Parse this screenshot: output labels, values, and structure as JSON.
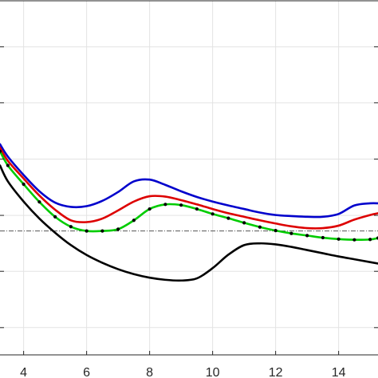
{
  "chart_data": {
    "type": "line",
    "title": "",
    "xlabel": "",
    "ylabel": "",
    "xlim": [
      3.25,
      15.25
    ],
    "ylim": [
      0,
      1
    ],
    "x_ticks": [
      4,
      6,
      8,
      10,
      12,
      14
    ],
    "x_tick_labels": [
      "4",
      "6",
      "8",
      "10",
      "12",
      "14"
    ],
    "y_ticks": [
      0.077,
      0.236,
      0.394,
      0.553,
      0.712,
      0.87
    ],
    "grid": true,
    "legend": "none",
    "reference_line": {
      "y": 0.35,
      "style": "dash-dot",
      "color": "#555555"
    },
    "series": [
      {
        "color": "#0000cc",
        "style": "solid",
        "x": [
          3.25,
          3.5,
          4,
          4.5,
          5,
          5.5,
          6,
          6.5,
          7,
          7.5,
          8,
          8.5,
          9,
          9.5,
          10,
          10.5,
          11,
          11.5,
          12,
          12.5,
          13,
          13.5,
          14,
          14.5,
          15,
          15.25
        ],
        "y": [
          0.595,
          0.56,
          0.508,
          0.462,
          0.43,
          0.418,
          0.42,
          0.435,
          0.46,
          0.49,
          0.495,
          0.48,
          0.462,
          0.446,
          0.433,
          0.422,
          0.412,
          0.402,
          0.395,
          0.392,
          0.39,
          0.39,
          0.398,
          0.422,
          0.428,
          0.428
        ]
      },
      {
        "color": "#dd0000",
        "style": "solid",
        "x": [
          3.25,
          3.5,
          4,
          4.5,
          5,
          5.5,
          6,
          6.5,
          7,
          7.5,
          8,
          8.5,
          9,
          9.5,
          10,
          10.5,
          11,
          11.5,
          12,
          12.5,
          13,
          13.5,
          14,
          14.5,
          15,
          15.25
        ],
        "y": [
          0.585,
          0.548,
          0.498,
          0.45,
          0.41,
          0.38,
          0.375,
          0.385,
          0.408,
          0.433,
          0.448,
          0.447,
          0.437,
          0.425,
          0.412,
          0.4,
          0.39,
          0.38,
          0.371,
          0.363,
          0.358,
          0.358,
          0.365,
          0.382,
          0.395,
          0.4
        ]
      },
      {
        "color": "#00cc00",
        "style": "solid-with-black-markers",
        "x": [
          3.25,
          3.5,
          4,
          4.5,
          5,
          5.5,
          6,
          6.5,
          7,
          7.5,
          8,
          8.5,
          9,
          9.5,
          10,
          10.5,
          11,
          11.5,
          12,
          12.5,
          13,
          13.5,
          14,
          14.5,
          15,
          15.25
        ],
        "y": [
          0.575,
          0.535,
          0.482,
          0.432,
          0.39,
          0.362,
          0.35,
          0.35,
          0.355,
          0.38,
          0.412,
          0.425,
          0.423,
          0.412,
          0.398,
          0.386,
          0.373,
          0.361,
          0.351,
          0.343,
          0.337,
          0.331,
          0.327,
          0.325,
          0.326,
          0.33
        ]
      },
      {
        "color": "#000000",
        "style": "solid",
        "x": [
          3.25,
          3.5,
          4,
          4.5,
          5,
          5.5,
          6,
          6.5,
          7,
          7.5,
          8,
          8.5,
          9,
          9.5,
          10,
          10.5,
          11,
          11.5,
          12,
          12.5,
          13,
          13.5,
          14,
          14.5,
          15,
          15.25
        ],
        "y": [
          0.535,
          0.49,
          0.433,
          0.385,
          0.345,
          0.31,
          0.282,
          0.26,
          0.242,
          0.228,
          0.218,
          0.212,
          0.21,
          0.216,
          0.245,
          0.283,
          0.31,
          0.315,
          0.312,
          0.305,
          0.296,
          0.287,
          0.278,
          0.27,
          0.262,
          0.258
        ]
      }
    ]
  }
}
